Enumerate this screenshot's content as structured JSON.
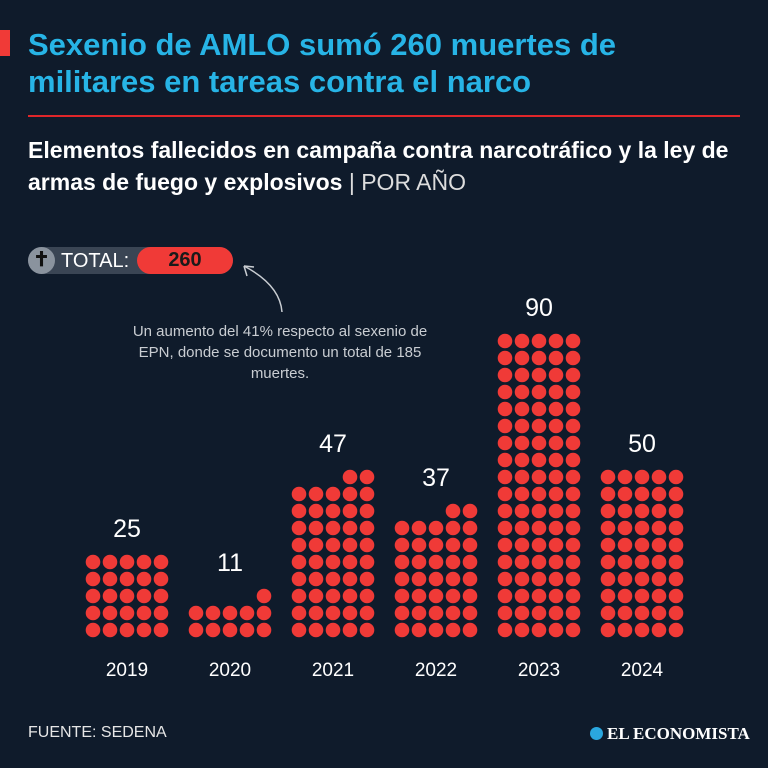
{
  "header": {
    "title": "Sexenio de AMLO sumó 260 muertes de militares en tareas contra el narco",
    "subtitle": "Elementos fallecidos en campaña contra narcotráfico y la ley de armas de fuego y explosivos",
    "subtitle_unit": "| POR AÑO"
  },
  "total": {
    "label": "TOTAL:",
    "value": "260",
    "icon": "cross-icon"
  },
  "annotation": "Un aumento del 41% respecto al sexenio de EPN, donde se documento un total de 185 muertes.",
  "footer": {
    "source": "FUENTE: SEDENA",
    "logo": "EL ECONOMISTA"
  },
  "colors": {
    "dot": "#f03a37",
    "title": "#27b4e6",
    "background": "#0f1b2b"
  },
  "chart_data": {
    "type": "waffle-bar",
    "title": "Elementos fallecidos en campaña contra narcotráfico y la ley de armas de fuego y explosivos",
    "categories": [
      "2019",
      "2020",
      "2021",
      "2022",
      "2023",
      "2024"
    ],
    "values": [
      25,
      11,
      47,
      37,
      90,
      50
    ],
    "labels": [
      "25",
      "11",
      "47",
      "37",
      "90",
      "50"
    ],
    "dots_per_row": 5,
    "unit_per_dot": 1
  }
}
